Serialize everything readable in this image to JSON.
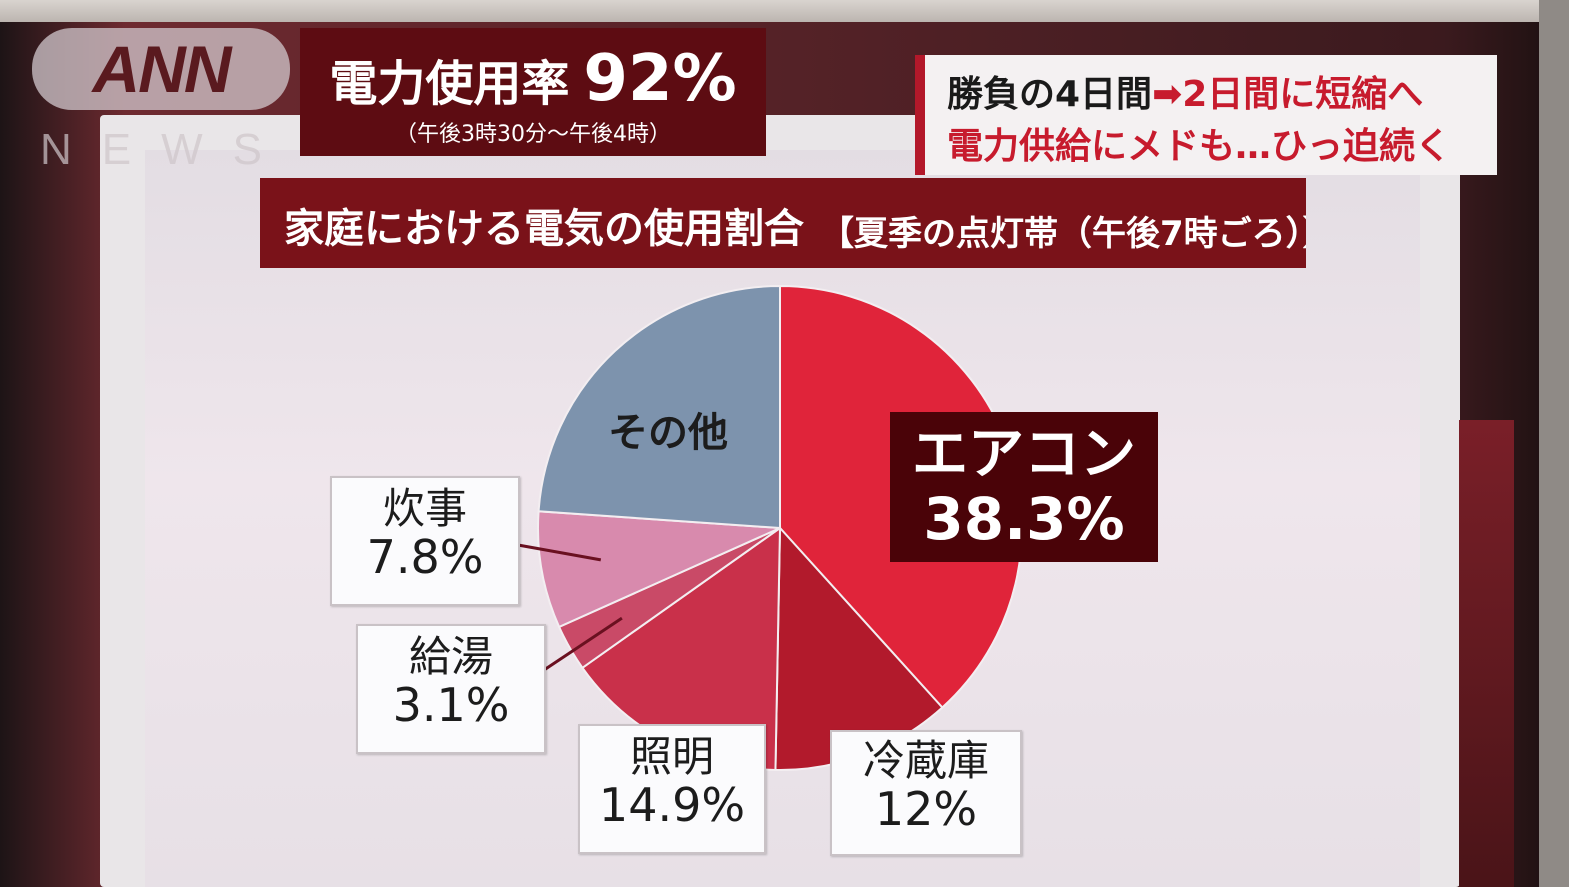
{
  "logo": {
    "text": "ANN",
    "sub": "NEWS"
  },
  "headline": {
    "main": "電力使用率",
    "value": "92%",
    "sub": "（午後3時30分～午後4時）"
  },
  "ticker": {
    "line1_a": "勝負の4日間",
    "arrow": "➡",
    "line1_b": "2日間に短縮へ",
    "line2": "電力供給にメドも…ひっ迫続く"
  },
  "colors": {
    "aircon": "#e0243a",
    "fridge": "#b21a2c",
    "lighting": "#c9304a",
    "hotwater": "#c94a67",
    "cooking": "#d88aad",
    "other": "#7d93ad",
    "title_bg": "#7a1219"
  },
  "chart_data": {
    "type": "pie",
    "title": "家庭における電気の使用割合",
    "subtitle": "【夏季の点灯帯（午後7時ごろ）】",
    "slices": [
      {
        "label": "エアコン",
        "value": 38.3,
        "value_text": "38.3%"
      },
      {
        "label": "冷蔵庫",
        "value": 12,
        "value_text": "12%"
      },
      {
        "label": "照明",
        "value": 14.9,
        "value_text": "14.9%"
      },
      {
        "label": "給湯",
        "value": 3.1,
        "value_text": "3.1%"
      },
      {
        "label": "炊事",
        "value": 7.8,
        "value_text": "7.8%"
      },
      {
        "label": "その他",
        "value": 23.9,
        "value_text": ""
      }
    ]
  }
}
